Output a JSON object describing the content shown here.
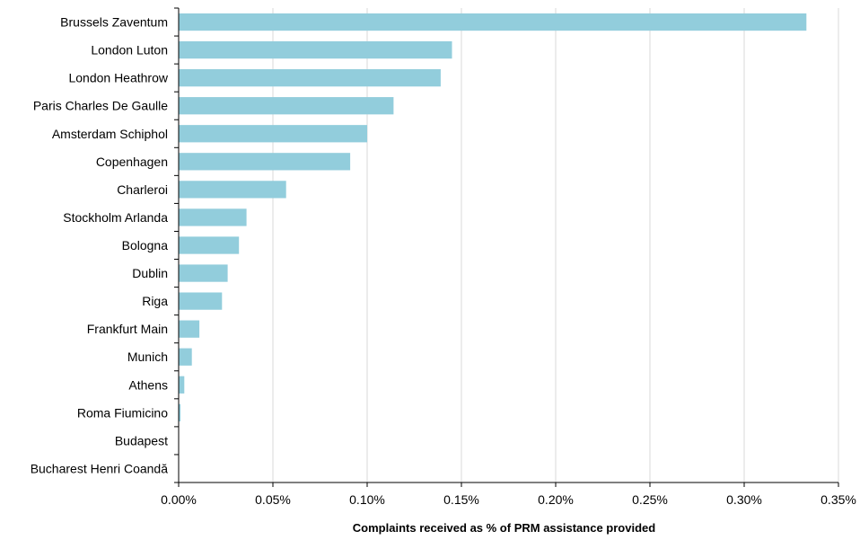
{
  "chart_data": {
    "type": "bar",
    "orientation": "horizontal",
    "categories": [
      "Brussels Zaventum",
      "London Luton",
      "London Heathrow",
      "Paris Charles De Gaulle",
      "Amsterdam Schiphol",
      "Copenhagen",
      "Charleroi",
      "Stockholm Arlanda",
      "Bologna",
      "Dublin",
      "Riga",
      "Frankfurt Main",
      "Munich",
      "Athens",
      "Roma Fiumicino",
      "Budapest",
      "Bucharest Henri Coandă"
    ],
    "values": [
      0.333,
      0.145,
      0.139,
      0.114,
      0.1,
      0.091,
      0.057,
      0.036,
      0.032,
      0.026,
      0.023,
      0.011,
      0.007,
      0.003,
      0.001,
      0.0,
      0.0
    ],
    "title": "",
    "xlabel": "Complaints received as % of PRM assistance provided",
    "ylabel": "",
    "xlim": [
      0,
      0.35
    ],
    "xticks": [
      "0.00%",
      "0.05%",
      "0.10%",
      "0.15%",
      "0.20%",
      "0.25%",
      "0.30%",
      "0.35%"
    ],
    "grid": "vertical",
    "legend": "none",
    "colors": {
      "bar": "#92cddc",
      "grid": "#d9d9d9",
      "axis": "#000000"
    }
  }
}
